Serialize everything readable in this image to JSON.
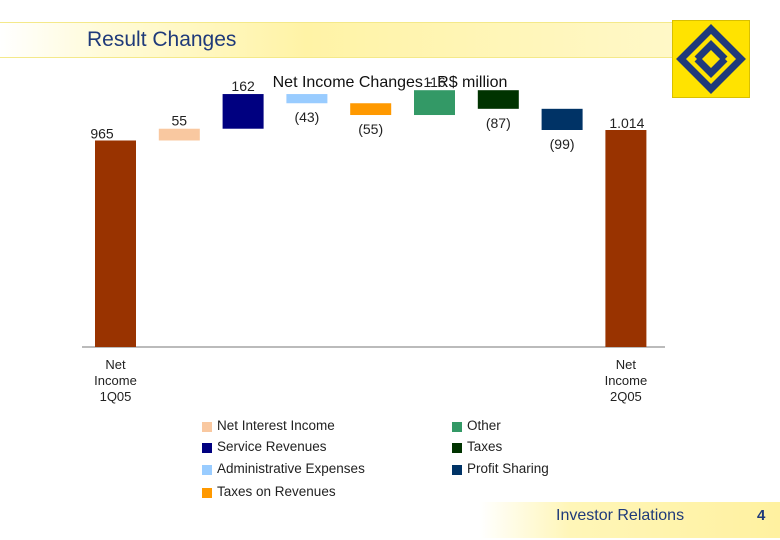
{
  "header": {
    "title": "Result Changes"
  },
  "chart_data": {
    "type": "bar",
    "title": "Net Income Changes - R$ million",
    "categories": [
      "Net Income 1Q05",
      "Net Interest Income",
      "Service Revenues",
      "Administrative Expenses",
      "Taxes on Revenues",
      "Other",
      "Taxes",
      "Profit Sharing",
      "Net Income 2Q05"
    ],
    "values": [
      965,
      55,
      162,
      -43,
      -55,
      116,
      -87,
      -99,
      1014
    ],
    "value_labels": [
      "965",
      "55",
      "162",
      "(43)",
      "(55)",
      "116",
      "(87)",
      "(99)",
      "1.014"
    ],
    "x_labels": [
      [
        "Net",
        "Income",
        "1Q05"
      ],
      [],
      [],
      [],
      [],
      [],
      [],
      [],
      [
        "Net",
        "Income",
        "2Q05"
      ]
    ],
    "colors": [
      "#993300",
      "#f9c8a0",
      "#000080",
      "#99ccff",
      "#ff9900",
      "#339966",
      "#003300",
      "#003366",
      "#993300"
    ],
    "legend": [
      {
        "name": "Net Interest Income",
        "color": "#f9c8a0"
      },
      {
        "name": "Service Revenues",
        "color": "#000080"
      },
      {
        "name": "Administrative Expenses",
        "color": "#99ccff"
      },
      {
        "name": "Taxes on Revenues",
        "color": "#ff9900"
      },
      {
        "name": "Other",
        "color": "#339966"
      },
      {
        "name": "Taxes",
        "color": "#003300"
      },
      {
        "name": "Profit Sharing",
        "color": "#003366"
      }
    ],
    "legend_position": "bottom",
    "grid": false
  },
  "footer": {
    "label": "Investor Relations",
    "page": "4"
  }
}
